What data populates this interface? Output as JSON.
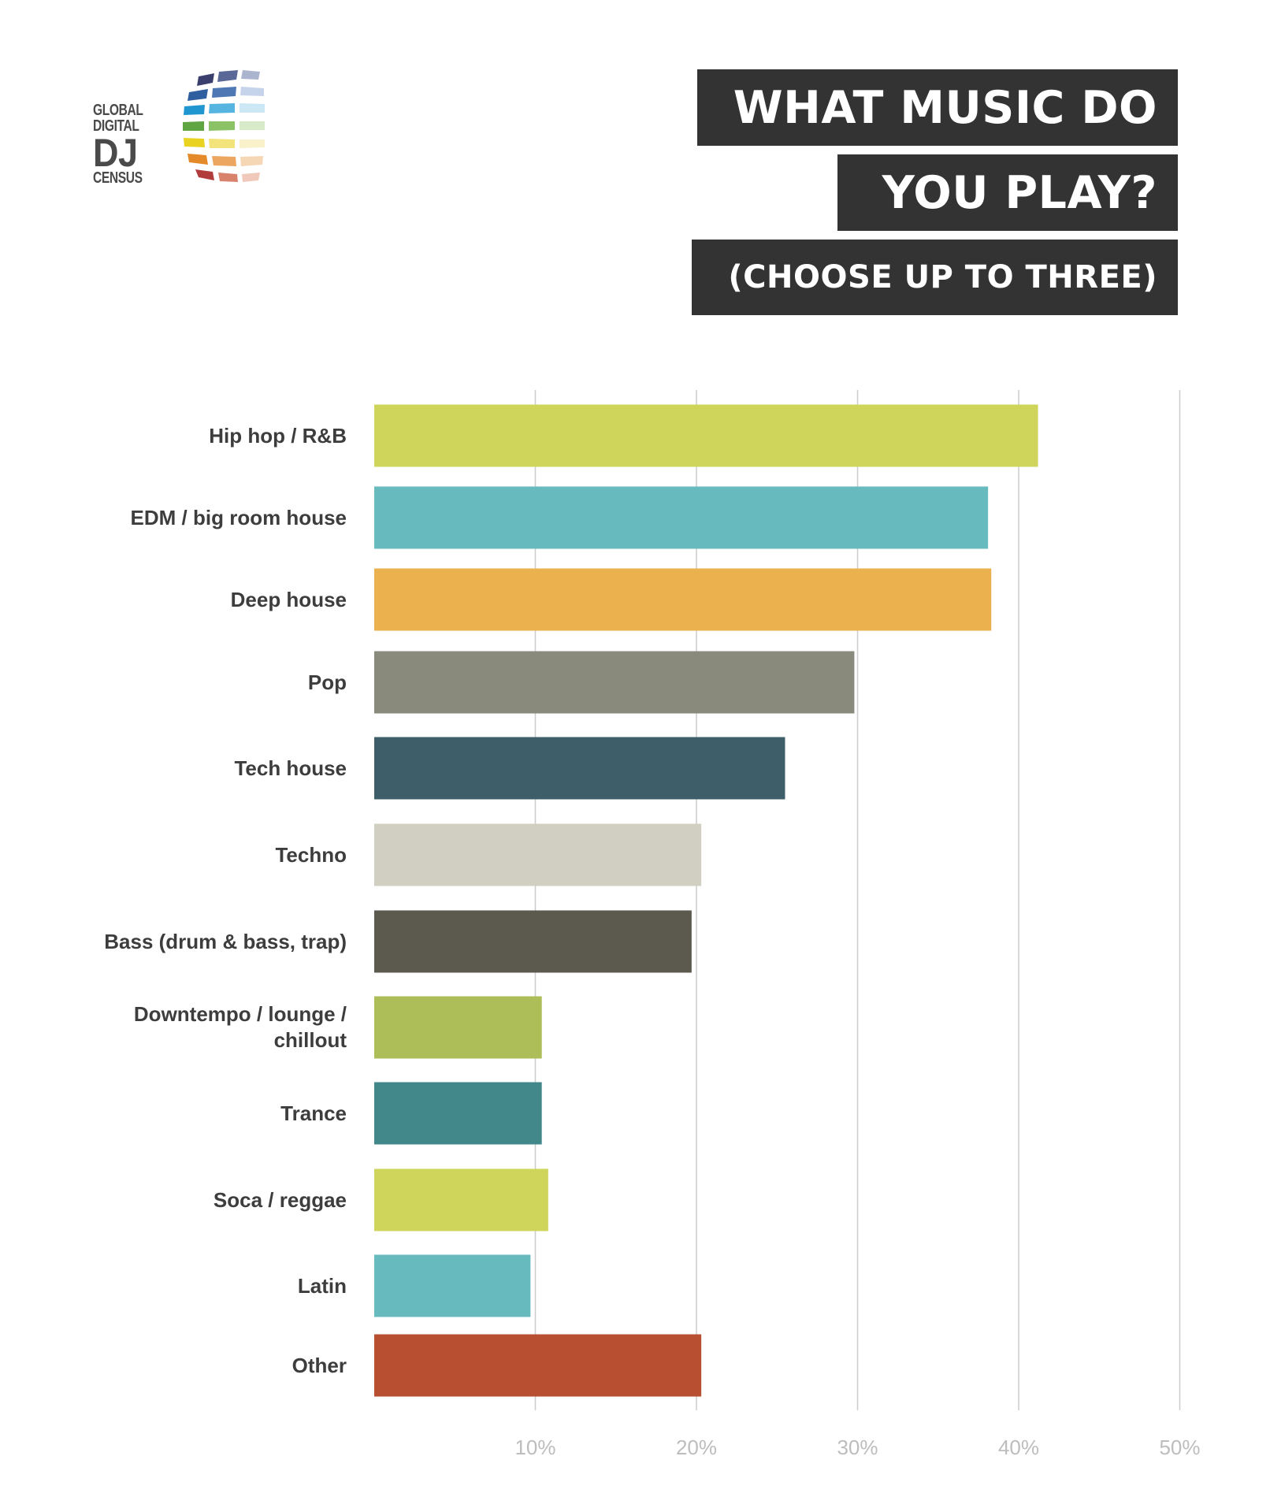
{
  "logo": {
    "line1": "GLOBAL",
    "line2": "DIGITAL",
    "line3": "DJ",
    "line4": "CENSUS"
  },
  "title": {
    "line1": "WHAT MUSIC DO",
    "line2": "YOU PLAY?",
    "line3": "(CHOOSE UP TO THREE)"
  },
  "chart_data": {
    "type": "bar",
    "orientation": "horizontal",
    "categories": [
      "Hip hop / R&B",
      "EDM / big room house",
      "Deep house",
      "Pop",
      "Tech house",
      "Techno",
      "Bass (drum & bass, trap)",
      "Downtempo / lounge / chillout",
      "Trance",
      "Soca / reggae",
      "Latin",
      "Other"
    ],
    "values": [
      41.2,
      38.1,
      38.3,
      29.8,
      25.5,
      20.3,
      19.7,
      10.4,
      10.4,
      10.8,
      9.7,
      20.3
    ],
    "colors": [
      "#cfd45b",
      "#67babd",
      "#ebb14f",
      "#8a8a7c",
      "#3e5f6a",
      "#d0cfc2",
      "#5c5a4e",
      "#adbd58",
      "#42878a",
      "#cfd45b",
      "#67babd",
      "#b74f30"
    ],
    "xlim": [
      0,
      50
    ],
    "xticks": [
      "10%",
      "20%",
      "30%",
      "40%",
      "50%"
    ],
    "xtick_values": [
      10,
      20,
      30,
      40,
      50
    ],
    "grid": true,
    "xlabel": "",
    "ylabel": ""
  }
}
